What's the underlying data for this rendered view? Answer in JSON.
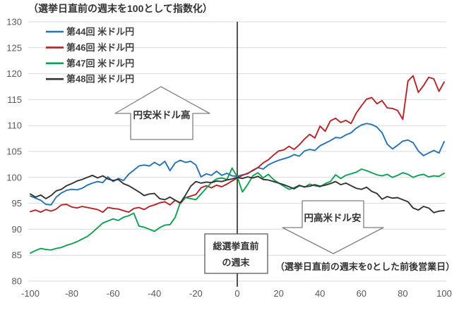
{
  "title": "（選挙日直前の週末を100として指数化）",
  "x_axis_note": "（選挙日直前の週末を0とした前後営業日）",
  "annotations": {
    "up_arrow_label": "円安米ドル高",
    "down_arrow_label": "円高米ドル安",
    "box_line1": "総選挙直前",
    "box_line2": "の週末"
  },
  "legend": [
    {
      "label": "第44回 米ドル円",
      "color": "#2272B5"
    },
    {
      "label": "第46回 米ドル円",
      "color": "#B42327"
    },
    {
      "label": "第47回 米ドル円",
      "color": "#0CA04F"
    },
    {
      "label": "第48回 米ドル円",
      "color": "#333333"
    }
  ],
  "chart_data": {
    "type": "line",
    "title": "（選挙日直前の週末を100として指数化）",
    "xlabel": "（選挙日直前の週末を0とした前後営業日）",
    "ylabel": "",
    "xlim": [
      -100,
      100
    ],
    "ylim": [
      80,
      130
    ],
    "x_ticks": [
      -100,
      -80,
      -60,
      -40,
      -20,
      0,
      20,
      40,
      60,
      80,
      100
    ],
    "y_ticks": [
      80,
      85,
      90,
      95,
      100,
      105,
      110,
      115,
      120,
      125,
      130
    ],
    "grid": "horizontal",
    "legend_position": "top-left-inside",
    "zero_line_x": 0,
    "x_start": -100,
    "x_step": 2.5,
    "series": [
      {
        "name": "第44回 米ドル円",
        "color": "#2272B5",
        "values": [
          96.4,
          96.0,
          95.6,
          94.8,
          94.7,
          96.2,
          97.0,
          97.5,
          97.7,
          97.6,
          97.9,
          98.5,
          98.9,
          99.2,
          99.0,
          100.1,
          99.2,
          99.8,
          99.4,
          100.6,
          101.4,
          102.2,
          102.4,
          102.2,
          102.9,
          102.3,
          103.1,
          101.3,
          102.8,
          103.3,
          102.9,
          103.1,
          102.4,
          100.1,
          100.7,
          100.4,
          101.2,
          100.4,
          100.8,
          100.3,
          100.2,
          100.5,
          100.7,
          101.4,
          101.9,
          101.6,
          102.4,
          102.9,
          103.3,
          103.6,
          103.9,
          104.4,
          104.1,
          105.1,
          105.4,
          105.2,
          106.1,
          106.6,
          107.1,
          107.7,
          107.6,
          108.2,
          108.6,
          109.5,
          110.1,
          110.4,
          110.2,
          109.7,
          108.6,
          106.4,
          105.5,
          106.2,
          107.0,
          107.2,
          106.7,
          105.1,
          104.2,
          104.7,
          105.2,
          104.7,
          106.9
        ]
      },
      {
        "name": "第46回 米ドル円",
        "color": "#B42327",
        "values": [
          93.4,
          93.7,
          93.3,
          93.8,
          93.5,
          93.9,
          94.7,
          94.8,
          94.3,
          94.1,
          94.4,
          94.2,
          94.0,
          93.8,
          93.3,
          94.2,
          94.0,
          93.9,
          93.6,
          93.3,
          94.0,
          94.2,
          93.8,
          94.4,
          94.7,
          95.1,
          95.3,
          94.7,
          95.6,
          95.0,
          96.1,
          96.4,
          96.7,
          98.0,
          98.4,
          98.0,
          98.5,
          98.2,
          98.7,
          99.3,
          99.9,
          100.4,
          100.8,
          101.3,
          101.9,
          102.8,
          103.4,
          104.3,
          105.1,
          105.3,
          106.0,
          105.4,
          106.3,
          107.4,
          108.3,
          107.6,
          109.9,
          108.9,
          110.9,
          111.4,
          110.6,
          111.0,
          110.4,
          112.4,
          113.8,
          115.1,
          115.4,
          114.2,
          114.8,
          113.4,
          113.3,
          112.9,
          111.2,
          118.6,
          119.6,
          116.4,
          117.7,
          119.3,
          119.0,
          116.6,
          118.4
        ]
      },
      {
        "name": "第47回 米ドル円",
        "color": "#0CA04F",
        "values": [
          85.4,
          85.9,
          86.3,
          86.1,
          86.0,
          86.3,
          86.5,
          86.9,
          87.2,
          87.6,
          88.1,
          88.6,
          89.4,
          90.3,
          91.2,
          91.6,
          92.0,
          91.7,
          92.3,
          92.6,
          93.1,
          90.6,
          90.4,
          90.0,
          89.6,
          90.3,
          90.8,
          90.9,
          92.3,
          95.2,
          96.1,
          95.9,
          95.7,
          96.8,
          97.9,
          99.0,
          99.7,
          99.9,
          99.6,
          101.8,
          100.1,
          97.2,
          98.6,
          100.3,
          100.9,
          99.9,
          100.6,
          99.6,
          98.9,
          98.3,
          97.7,
          98.0,
          98.5,
          98.1,
          98.7,
          98.4,
          98.2,
          98.8,
          99.2,
          100.5,
          99.8,
          100.4,
          100.7,
          101.0,
          101.6,
          101.3,
          100.9,
          100.5,
          100.3,
          100.6,
          100.0,
          100.4,
          100.9,
          100.6,
          100.0,
          100.4,
          100.6,
          100.1,
          100.3,
          100.2,
          100.8
        ]
      },
      {
        "name": "第48回 米ドル円",
        "color": "#333333",
        "values": [
          96.8,
          96.2,
          96.6,
          95.9,
          96.5,
          97.4,
          97.7,
          98.4,
          98.8,
          99.3,
          99.6,
          100.0,
          100.4,
          99.9,
          100.3,
          99.7,
          99.4,
          99.6,
          98.8,
          98.4,
          97.8,
          97.2,
          96.5,
          96.8,
          96.9,
          95.9,
          95.7,
          96.2,
          95.6,
          95.1,
          96.6,
          98.3,
          99.2,
          98.9,
          99.1,
          99.0,
          99.3,
          99.2,
          99.5,
          99.7,
          100.0,
          99.8,
          100.1,
          99.9,
          100.2,
          99.6,
          99.5,
          99.2,
          98.9,
          98.6,
          98.2,
          97.8,
          98.4,
          98.2,
          98.3,
          98.6,
          98.3,
          98.5,
          98.8,
          99.2,
          98.6,
          98.9,
          98.4,
          97.9,
          97.7,
          98.1,
          97.3,
          96.9,
          95.8,
          96.3,
          96.0,
          96.1,
          95.7,
          95.3,
          94.1,
          93.7,
          94.4,
          94.1,
          93.2,
          93.5,
          93.6
        ]
      }
    ]
  }
}
